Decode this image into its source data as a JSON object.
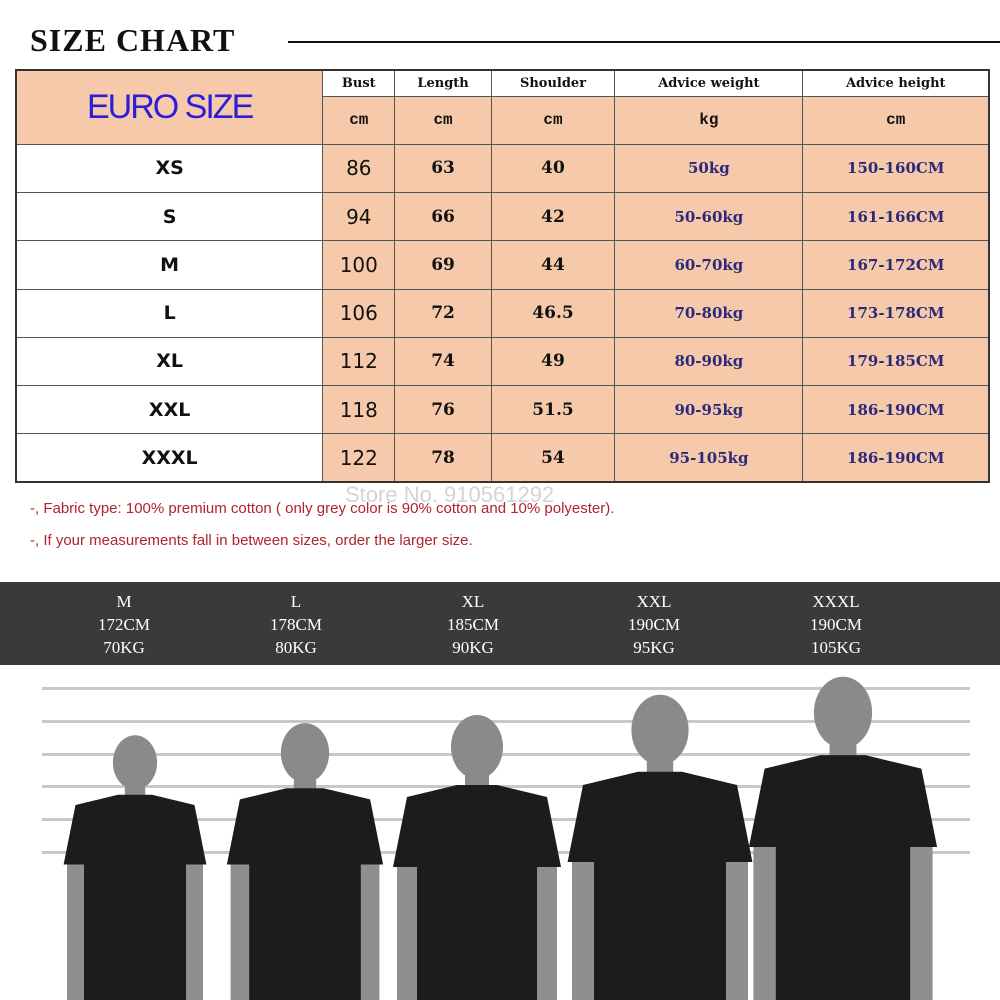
{
  "title": "SIZE CHART",
  "table": {
    "corner": "EURO SIZE",
    "headers": [
      "Bust",
      "Length",
      "Shoulder",
      "Advice weight",
      "Advice height"
    ],
    "units": [
      "cm",
      "cm",
      "cm",
      "kg",
      "cm"
    ],
    "rows": [
      [
        "XS",
        "86",
        "63",
        "40",
        "50kg",
        "150-160CM"
      ],
      [
        "S",
        "94",
        "66",
        "42",
        "50-60kg",
        "161-166CM"
      ],
      [
        "M",
        "100",
        "69",
        "44",
        "60-70kg",
        "167-172CM"
      ],
      [
        "L",
        "106",
        "72",
        "46.5",
        "70-80kg",
        "173-178CM"
      ],
      [
        "XL",
        "112",
        "74",
        "49",
        "80-90kg",
        "179-185CM"
      ],
      [
        "XXL",
        "118",
        "76",
        "51.5",
        "90-95kg",
        "186-190CM"
      ],
      [
        "XXXL",
        "122",
        "78",
        "54",
        "95-105kg",
        "186-190CM"
      ]
    ]
  },
  "watermark": "Store No. 910561292",
  "notes": [
    "-, Fabric type: 100% premium cotton ( only grey color is 90% cotton and 10% polyester).",
    "-, If your measurements fall in between sizes, order the larger size."
  ],
  "models": [
    {
      "size": "M",
      "height": "172CM",
      "weight": "70KG"
    },
    {
      "size": "L",
      "height": "178CM",
      "weight": "80KG"
    },
    {
      "size": "XL",
      "height": "185CM",
      "weight": "90KG"
    },
    {
      "size": "XXL",
      "height": "190CM",
      "weight": "95KG"
    },
    {
      "size": "XXXL",
      "height": "190CM",
      "weight": "105KG"
    }
  ],
  "colors": {
    "cell": "#f6c9aa",
    "euro": "#2a1fd6",
    "note": "#b0242a",
    "band": "#3a3a3a"
  }
}
